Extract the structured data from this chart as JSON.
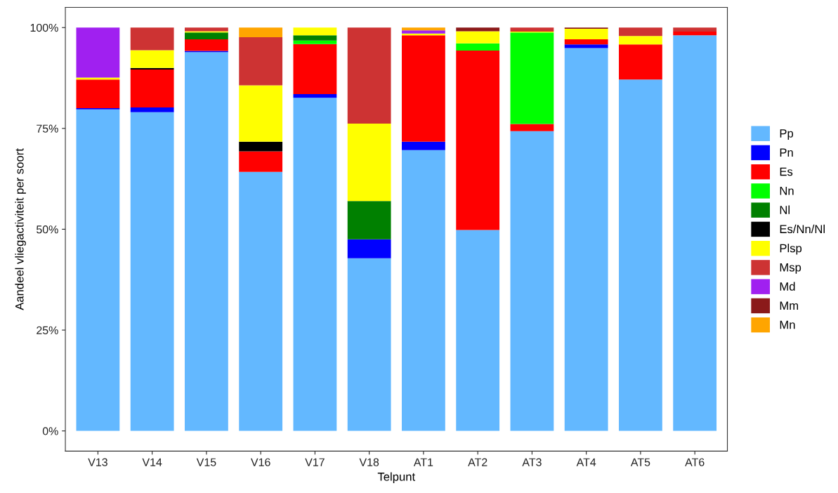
{
  "chart_data": {
    "type": "bar",
    "stacked": true,
    "xlabel": "Telpunt",
    "ylabel": "Aandeel vliegactiviteit per soort",
    "categories": [
      "V13",
      "V14",
      "V15",
      "V16",
      "V17",
      "V18",
      "AT1",
      "AT2",
      "AT3",
      "AT4",
      "AT5",
      "AT6"
    ],
    "ylim": [
      -5,
      105
    ],
    "yticks": [
      {
        "value": 0,
        "label": "0%"
      },
      {
        "value": 25,
        "label": "25%"
      },
      {
        "value": 50,
        "label": "50%"
      },
      {
        "value": 75,
        "label": "75%"
      },
      {
        "value": 100,
        "label": "100%"
      }
    ],
    "grid": false,
    "legend": "right",
    "series": [
      {
        "name": "Pp",
        "color": "#63b8ff",
        "values": [
          79.7,
          79.0,
          93.9,
          64.2,
          82.6,
          42.8,
          69.6,
          49.8,
          74.3,
          94.9,
          87.1,
          98.1
        ]
      },
      {
        "name": "Pn",
        "color": "#0000ff",
        "values": [
          0.3,
          1.2,
          0.3,
          0,
          0.9,
          4.7,
          2.1,
          0,
          0,
          0.9,
          0,
          0
        ]
      },
      {
        "name": "Es",
        "color": "#ff0000",
        "values": [
          7.1,
          9.4,
          2.9,
          5.1,
          12.4,
          0,
          26.4,
          44.5,
          1.8,
          1.3,
          8.7,
          0.9
        ]
      },
      {
        "name": "Nn",
        "color": "#00ff00",
        "values": [
          0,
          0,
          0,
          0,
          0.9,
          0,
          0,
          1.8,
          22.7,
          0,
          0,
          0
        ]
      },
      {
        "name": "Nl",
        "color": "#008000",
        "values": [
          0,
          0,
          1.7,
          0,
          1.3,
          9.5,
          0,
          0,
          0,
          0,
          0,
          0
        ]
      },
      {
        "name": "Es/Nn/Nl",
        "color": "#000000",
        "values": [
          0,
          0.4,
          0,
          2.4,
          0,
          0,
          0,
          0,
          0,
          0,
          0,
          0
        ]
      },
      {
        "name": "Plsp",
        "color": "#ffff00",
        "values": [
          0.5,
          4.4,
          0.3,
          14.0,
          1.9,
          19.2,
          0.4,
          3.0,
          0.2,
          2.6,
          2.1,
          0
        ]
      },
      {
        "name": "Msp",
        "color": "#cd3333",
        "values": [
          0,
          5.6,
          0.9,
          11.9,
          0,
          23.8,
          0,
          0,
          1.0,
          0,
          2.1,
          1.0
        ]
      },
      {
        "name": "Md",
        "color": "#a020f0",
        "values": [
          12.4,
          0,
          0,
          0,
          0,
          0,
          0.8,
          0,
          0,
          0,
          0,
          0
        ]
      },
      {
        "name": "Mm",
        "color": "#8b1a1a",
        "values": [
          0,
          0,
          0,
          0,
          0,
          0,
          0,
          0.9,
          0,
          0.3,
          0,
          0
        ]
      },
      {
        "name": "Mn",
        "color": "#ffa500",
        "values": [
          0,
          0,
          0,
          2.4,
          0,
          0,
          0.7,
          0,
          0,
          0,
          0,
          0
        ]
      }
    ]
  }
}
